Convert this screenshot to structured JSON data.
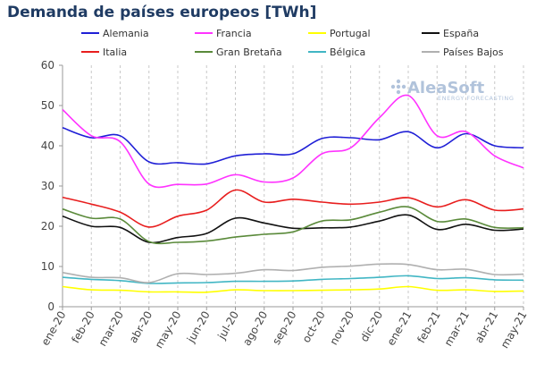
{
  "chart_data": {
    "type": "line",
    "title": "Demanda de países europeos [TWh]",
    "xlabel": "",
    "ylabel": "",
    "ylim": [
      0,
      60
    ],
    "yticks": [
      0,
      10,
      20,
      30,
      40,
      50,
      60
    ],
    "grid": "vertical-dashed",
    "legend_position": "top",
    "categories": [
      "ene-20",
      "feb-20",
      "mar-20",
      "abr-20",
      "may-20",
      "jun-20",
      "jul-20",
      "ago-20",
      "sep-20",
      "oct-20",
      "nov-20",
      "dic-20",
      "ene-21",
      "feb-21",
      "mar-21",
      "abr-21",
      "may-21"
    ],
    "series": [
      {
        "name": "Alemania",
        "color": "#1f1fd6",
        "values": [
          44.5,
          42,
          42.5,
          36,
          35.8,
          35.5,
          37.5,
          38,
          38,
          41.8,
          42,
          41.5,
          43.5,
          39.5,
          43,
          40,
          39.5
        ]
      },
      {
        "name": "Francia",
        "color": "#ff33ff",
        "values": [
          49,
          42.5,
          41,
          30.5,
          30.4,
          30.5,
          32.8,
          31,
          32,
          38,
          39.5,
          47,
          52.5,
          42.5,
          43.5,
          37.5,
          34.5
        ]
      },
      {
        "name": "Portugal",
        "color": "#ffff00",
        "values": [
          5,
          4.2,
          4.1,
          3.7,
          3.7,
          3.6,
          4.2,
          4,
          4,
          4.1,
          4.2,
          4.4,
          5,
          4.1,
          4.2,
          3.8,
          3.9
        ]
      },
      {
        "name": "España",
        "color": "#111111",
        "values": [
          22.5,
          20,
          19.7,
          16,
          17.2,
          18.2,
          22,
          20.8,
          19.5,
          19.6,
          19.8,
          21.3,
          22.8,
          19.2,
          20.5,
          19,
          19.3
        ]
      },
      {
        "name": "Italia",
        "color": "#e81e1e",
        "values": [
          27.2,
          25.5,
          23.5,
          19.8,
          22.5,
          24,
          29,
          26,
          26.7,
          26,
          25.5,
          26,
          27.1,
          24.8,
          26.6,
          24,
          24.3
        ]
      },
      {
        "name": "Gran Bretaña",
        "color": "#5a8a3a",
        "values": [
          24.3,
          22,
          21.8,
          16.2,
          16,
          16.3,
          17.3,
          18,
          18.6,
          21.3,
          21.6,
          23.5,
          24.8,
          21.2,
          21.8,
          19.7,
          19.6
        ]
      },
      {
        "name": "Bélgica",
        "color": "#41b6c4",
        "values": [
          7.3,
          6.8,
          6.5,
          5.8,
          5.9,
          6,
          6.3,
          6.3,
          6.4,
          6.8,
          7,
          7.3,
          7.7,
          7,
          7.2,
          6.7,
          6.6
        ]
      },
      {
        "name": "Países Bajos",
        "color": "#b0b0b0",
        "values": [
          8.5,
          7.3,
          7.2,
          6,
          8.2,
          8,
          8.3,
          9.2,
          9,
          9.8,
          10.1,
          10.6,
          10.5,
          9.2,
          9.3,
          8,
          8.1
        ]
      }
    ]
  },
  "logo": {
    "name": "AleaSoft",
    "tagline": "ENERGY FORECASTING"
  }
}
